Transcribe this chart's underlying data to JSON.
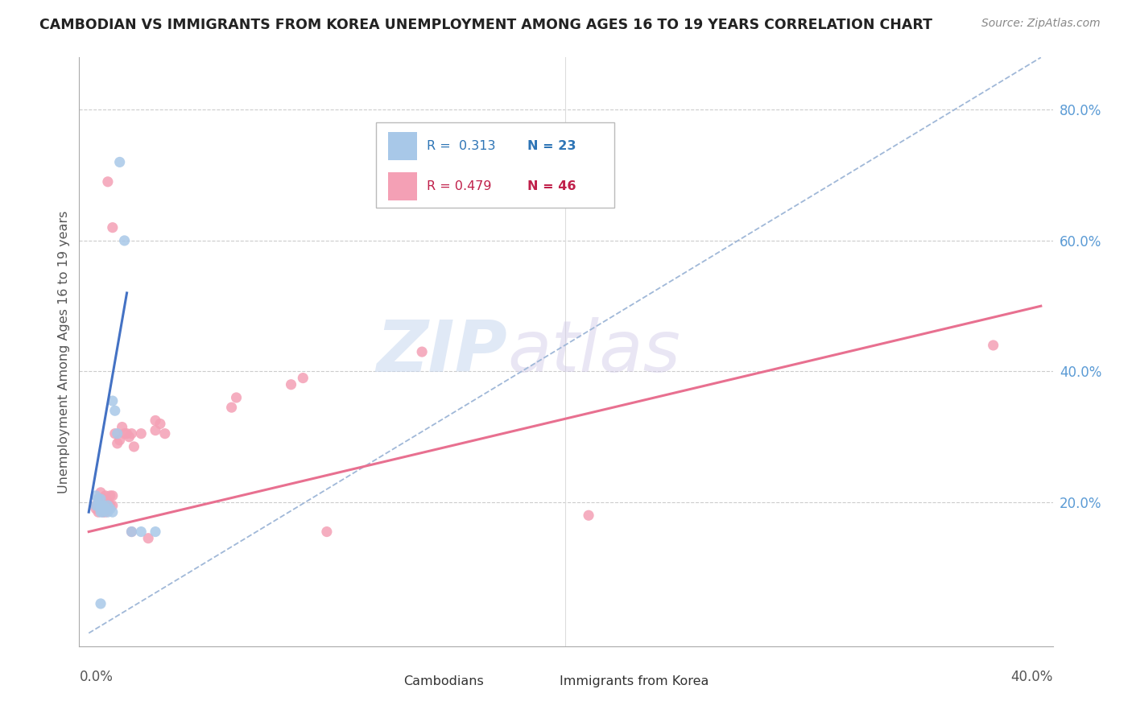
{
  "title": "CAMBODIAN VS IMMIGRANTS FROM KOREA UNEMPLOYMENT AMONG AGES 16 TO 19 YEARS CORRELATION CHART",
  "source_text": "Source: ZipAtlas.com",
  "ylabel": "Unemployment Among Ages 16 to 19 years",
  "xlim": [
    0.0,
    0.4
  ],
  "ylim": [
    -0.02,
    0.88
  ],
  "color_cambodian": "#A8C8E8",
  "color_korea": "#F4A0B5",
  "color_cambodian_line": "#4472C4",
  "color_korea_line": "#E87090",
  "color_dashed_line": "#A0B8D8",
  "color_grid": "#CCCCCC",
  "color_right_ticks": "#5B9BD5",
  "legend_R1": "0.313",
  "legend_N1": "23",
  "legend_R2": "0.479",
  "legend_N2": "46",
  "legend_label1": "Cambodians",
  "legend_label2": "Immigrants from Korea",
  "watermark_zip": "ZIP",
  "watermark_atlas": "atlas",
  "right_ytick_vals": [
    0.2,
    0.4,
    0.6,
    0.8
  ],
  "right_ytick_labels": [
    "20.0%",
    "40.0%",
    "60.0%",
    "80.0%"
  ],
  "cambodian_scatter": [
    [
      0.003,
      0.195
    ],
    [
      0.003,
      0.21
    ],
    [
      0.004,
      0.205
    ],
    [
      0.004,
      0.195
    ],
    [
      0.005,
      0.205
    ],
    [
      0.005,
      0.19
    ],
    [
      0.005,
      0.185
    ],
    [
      0.006,
      0.195
    ],
    [
      0.006,
      0.185
    ],
    [
      0.007,
      0.19
    ],
    [
      0.008,
      0.195
    ],
    [
      0.008,
      0.185
    ],
    [
      0.009,
      0.19
    ],
    [
      0.01,
      0.185
    ],
    [
      0.01,
      0.355
    ],
    [
      0.011,
      0.34
    ],
    [
      0.012,
      0.305
    ],
    [
      0.013,
      0.72
    ],
    [
      0.015,
      0.6
    ],
    [
      0.018,
      0.155
    ],
    [
      0.022,
      0.155
    ],
    [
      0.028,
      0.155
    ],
    [
      0.005,
      0.045
    ]
  ],
  "korea_scatter": [
    [
      0.003,
      0.195
    ],
    [
      0.003,
      0.19
    ],
    [
      0.004,
      0.205
    ],
    [
      0.004,
      0.195
    ],
    [
      0.004,
      0.185
    ],
    [
      0.005,
      0.215
    ],
    [
      0.005,
      0.2
    ],
    [
      0.005,
      0.19
    ],
    [
      0.006,
      0.205
    ],
    [
      0.006,
      0.195
    ],
    [
      0.006,
      0.185
    ],
    [
      0.007,
      0.21
    ],
    [
      0.007,
      0.195
    ],
    [
      0.007,
      0.185
    ],
    [
      0.008,
      0.2
    ],
    [
      0.008,
      0.19
    ],
    [
      0.009,
      0.21
    ],
    [
      0.009,
      0.195
    ],
    [
      0.01,
      0.21
    ],
    [
      0.01,
      0.195
    ],
    [
      0.011,
      0.305
    ],
    [
      0.012,
      0.29
    ],
    [
      0.013,
      0.295
    ],
    [
      0.014,
      0.315
    ],
    [
      0.015,
      0.305
    ],
    [
      0.016,
      0.305
    ],
    [
      0.017,
      0.3
    ],
    [
      0.018,
      0.305
    ],
    [
      0.019,
      0.285
    ],
    [
      0.022,
      0.305
    ],
    [
      0.028,
      0.325
    ],
    [
      0.028,
      0.31
    ],
    [
      0.03,
      0.32
    ],
    [
      0.032,
      0.305
    ],
    [
      0.06,
      0.345
    ],
    [
      0.062,
      0.36
    ],
    [
      0.085,
      0.38
    ],
    [
      0.09,
      0.39
    ],
    [
      0.1,
      0.155
    ],
    [
      0.14,
      0.43
    ],
    [
      0.21,
      0.18
    ],
    [
      0.38,
      0.44
    ],
    [
      0.008,
      0.69
    ],
    [
      0.01,
      0.62
    ],
    [
      0.018,
      0.155
    ],
    [
      0.025,
      0.145
    ]
  ],
  "cam_line_x": [
    0.0,
    0.016
  ],
  "cam_line_y": [
    0.185,
    0.52
  ],
  "kor_line_x": [
    0.0,
    0.4
  ],
  "kor_line_y": [
    0.155,
    0.5
  ],
  "dash_line_x": [
    0.0,
    0.4
  ],
  "dash_line_y": [
    0.0,
    0.88
  ]
}
